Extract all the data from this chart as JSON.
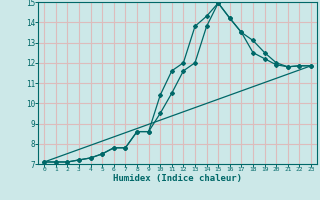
{
  "xlabel": "Humidex (Indice chaleur)",
  "xlim": [
    -0.5,
    23.5
  ],
  "ylim": [
    7,
    15
  ],
  "xticks": [
    0,
    1,
    2,
    3,
    4,
    5,
    6,
    7,
    8,
    9,
    10,
    11,
    12,
    13,
    14,
    15,
    16,
    17,
    18,
    19,
    20,
    21,
    22,
    23
  ],
  "yticks": [
    7,
    8,
    9,
    10,
    11,
    12,
    13,
    14,
    15
  ],
  "bg_color": "#cce8e8",
  "grid_color": "#ddbcbc",
  "line_color": "#006868",
  "line1_x": [
    0,
    1,
    2,
    3,
    4,
    5,
    6,
    7,
    8,
    9,
    10,
    11,
    12,
    13,
    14,
    15,
    16,
    17,
    18,
    19,
    20,
    21,
    22,
    23
  ],
  "line1_y": [
    7.1,
    7.1,
    7.1,
    7.2,
    7.3,
    7.5,
    7.8,
    7.8,
    8.6,
    8.6,
    10.4,
    11.6,
    12.0,
    13.8,
    14.3,
    14.95,
    14.2,
    13.5,
    13.1,
    12.5,
    12.0,
    11.8,
    11.85,
    11.85
  ],
  "line2_x": [
    0,
    1,
    2,
    3,
    4,
    5,
    6,
    7,
    8,
    9,
    10,
    11,
    12,
    13,
    14,
    15,
    16,
    17,
    18,
    19,
    20,
    21,
    22,
    23
  ],
  "line2_y": [
    7.1,
    7.1,
    7.1,
    7.2,
    7.3,
    7.5,
    7.8,
    7.8,
    8.6,
    8.6,
    9.5,
    10.5,
    11.6,
    12.0,
    13.8,
    14.95,
    14.2,
    13.5,
    12.5,
    12.2,
    11.9,
    11.8,
    11.85,
    11.85
  ],
  "line3_x": [
    0,
    23
  ],
  "line3_y": [
    7.1,
    11.85
  ]
}
